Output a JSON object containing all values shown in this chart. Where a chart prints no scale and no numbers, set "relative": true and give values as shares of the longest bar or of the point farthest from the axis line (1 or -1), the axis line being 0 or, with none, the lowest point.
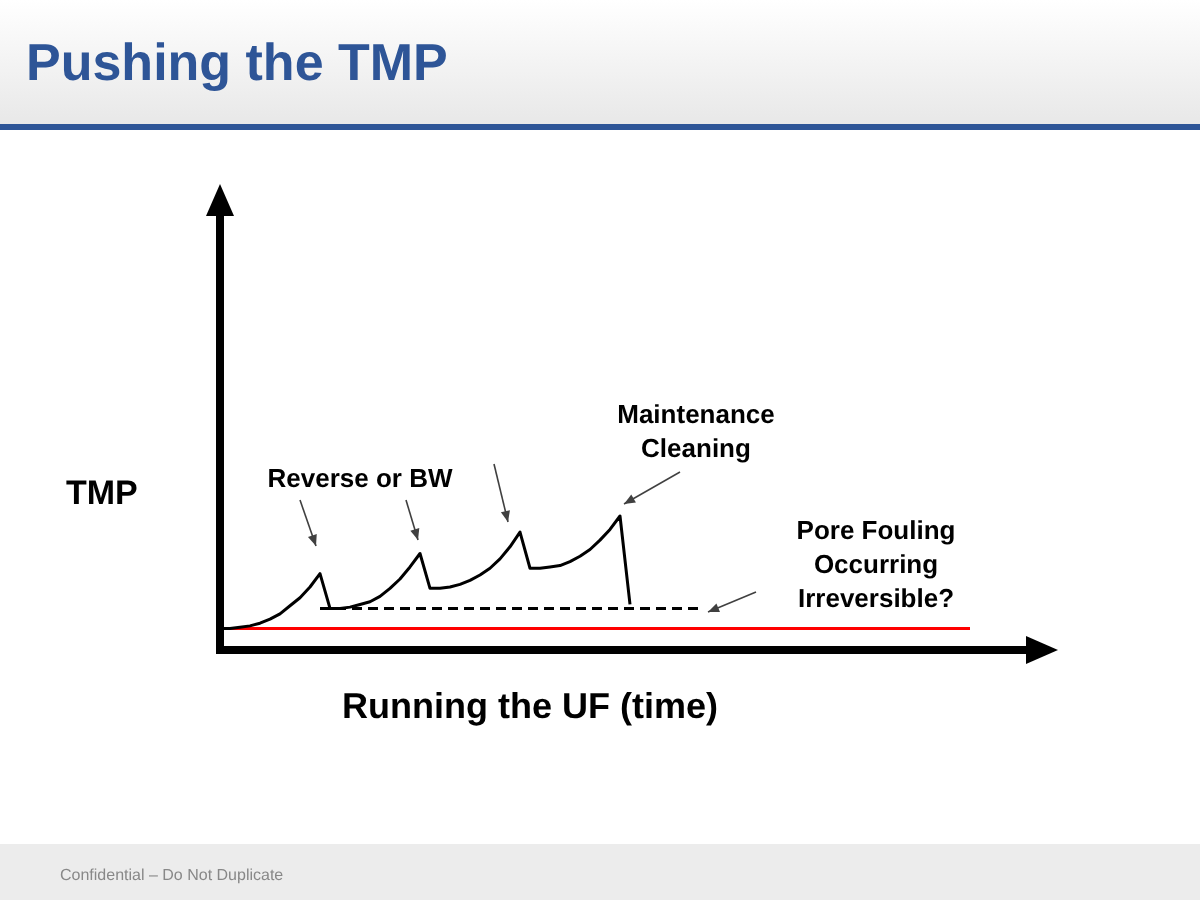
{
  "chart_data": {
    "type": "line",
    "title": "Pushing the TMP",
    "xlabel": "Running the UF (time)",
    "ylabel": "TMP",
    "relative": true,
    "marker": "none",
    "categories": [
      null,
      null,
      null,
      null,
      null,
      null,
      null,
      null,
      null,
      null,
      null,
      null,
      null,
      null,
      null,
      null,
      null,
      null,
      null,
      null,
      null,
      null,
      null,
      null,
      null,
      null,
      null,
      null,
      null,
      null,
      null,
      null,
      null,
      null,
      null,
      null,
      null,
      null,
      null,
      null,
      null,
      null,
      null,
      null,
      null,
      null,
      null,
      null,
      null,
      null,
      null,
      null,
      null,
      null,
      null,
      null,
      null,
      null,
      null,
      null,
      null,
      null,
      null,
      null,
      null,
      null,
      null,
      null,
      null,
      null,
      null,
      null,
      null,
      null,
      null,
      null,
      null,
      null,
      null,
      null,
      null
    ],
    "series": [
      {
        "color": "#000000",
        "line_style": "solid",
        "values": [
          0.16,
          0.16,
          0.17,
          0.18,
          0.2,
          0.23,
          0.27,
          0.33,
          0.39,
          0.47,
          0.57,
          0.31,
          0.31,
          0.32,
          0.34,
          0.36,
          0.4,
          0.46,
          0.53,
          0.62,
          0.72,
          0.46,
          0.46,
          0.47,
          0.49,
          0.52,
          0.56,
          0.61,
          0.68,
          0.77,
          0.88,
          0.61,
          0.61,
          0.62,
          0.63,
          0.66,
          0.7,
          0.75,
          0.82,
          0.9,
          1,
          0.34,
          null,
          null,
          null,
          null,
          null,
          null,
          null,
          null,
          null,
          null,
          null,
          null,
          null,
          null,
          null,
          null,
          null,
          null,
          null,
          null,
          null,
          null,
          null,
          null,
          null,
          null,
          null,
          null,
          null,
          null,
          null,
          null,
          null,
          null,
          null,
          null,
          null,
          null,
          null
        ]
      },
      {
        "color": "#000000",
        "line_style": "dashed",
        "values": [
          null,
          null,
          null,
          null,
          null,
          null,
          null,
          null,
          null,
          null,
          0.31,
          0.31,
          0.31,
          0.31,
          0.31,
          0.31,
          0.31,
          0.31,
          0.31,
          0.31,
          0.31,
          0.31,
          0.31,
          0.31,
          0.31,
          0.31,
          0.31,
          0.31,
          0.31,
          0.31,
          0.31,
          0.31,
          0.31,
          0.31,
          0.31,
          0.31,
          0.31,
          0.31,
          0.31,
          0.31,
          0.31,
          0.31,
          0.31,
          0.31,
          0.31,
          0.31,
          0.31,
          0.31,
          0.31,
          null,
          null,
          null,
          null,
          null,
          null,
          null,
          null,
          null,
          null,
          null,
          null,
          null,
          null,
          null,
          null,
          null,
          null,
          null,
          null,
          null,
          null,
          null,
          null,
          null,
          null,
          null,
          null,
          null,
          null,
          null,
          null
        ]
      },
      {
        "color": "#ff0000",
        "line_style": "solid",
        "values": [
          null,
          0.16,
          0.16,
          0.16,
          0.16,
          0.16,
          0.16,
          0.16,
          0.16,
          0.16,
          0.16,
          0.16,
          0.16,
          0.16,
          0.16,
          0.16,
          0.16,
          0.16,
          0.16,
          0.16,
          0.16,
          0.16,
          0.16,
          0.16,
          0.16,
          0.16,
          0.16,
          0.16,
          0.16,
          0.16,
          0.16,
          0.16,
          0.16,
          0.16,
          0.16,
          0.16,
          0.16,
          0.16,
          0.16,
          0.16,
          0.16,
          0.16,
          0.16,
          0.16,
          0.16,
          0.16,
          0.16,
          0.16,
          0.16,
          0.16,
          0.16,
          0.16,
          0.16,
          0.16,
          0.16,
          0.16,
          0.16,
          0.16,
          0.16,
          0.16,
          0.16,
          0.16,
          0.16,
          0.16,
          0.16,
          0.16,
          0.16,
          0.16,
          0.16,
          0.16,
          0.16,
          0.16,
          0.16,
          0.16,
          0.16,
          0.16,
          null,
          null,
          null,
          null,
          null
        ]
      }
    ],
    "annotations": [
      "Reverse or BW",
      "Maintenance\nCleaning",
      "Pore Fouling\nOccurring\nIrreversible?",
      "Confidential – Do Not Duplicate"
    ]
  }
}
